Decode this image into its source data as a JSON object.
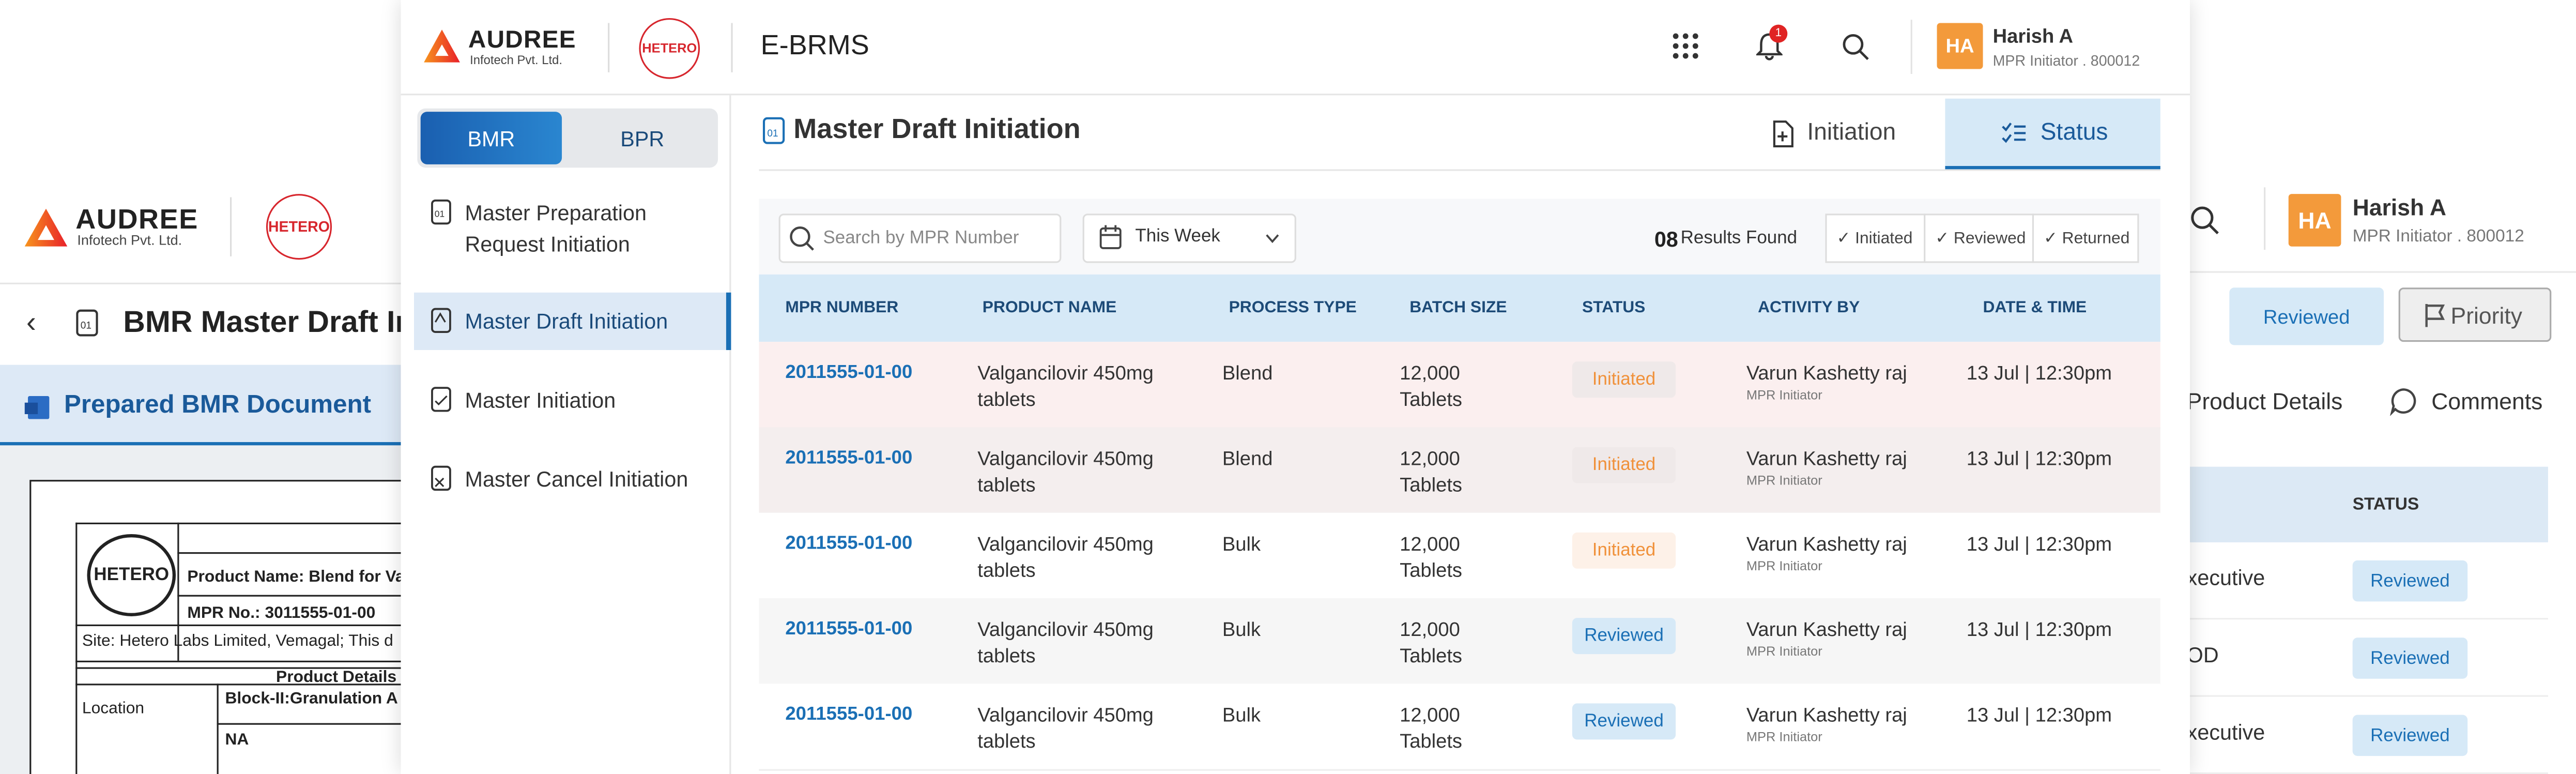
{
  "left_screen": {
    "logo": {
      "name": "AUDREE",
      "tagline": "Infotech Pvt. Ltd."
    },
    "partner": "HETERO",
    "title": "BMR Master Draft Initiation",
    "tab": "Prepared BMR Document",
    "document": {
      "partner": "HETERO",
      "product_name": "Product Name: Blend for Va",
      "mpr_no": "MPR No.: 3011555-01-00",
      "site": "Site: Hetero Labs Limited, Vemagal; This d",
      "section": "Product Details",
      "location_label": "Location",
      "location_value": "Block-II:Granulation A",
      "na": "NA"
    }
  },
  "right_screen": {
    "user": {
      "initials": "HA",
      "name": "Harish A",
      "role": "MPR Initiator . 800012"
    },
    "status_button": "Reviewed",
    "priority": "Priority",
    "tabs": [
      "Product Details",
      "Comments"
    ],
    "table": {
      "header": "STATUS",
      "rows": [
        [
          "xecutive",
          "Reviewed"
        ],
        [
          "OD",
          "Reviewed"
        ],
        [
          "xecutive",
          "Reviewed"
        ]
      ]
    }
  },
  "header": {
    "logo": {
      "name": "AUDREE",
      "tagline": "Infotech Pvt. Ltd."
    },
    "partner": "HETERO",
    "app": "E-BRMS",
    "notifications": "1",
    "user": {
      "initials": "HA",
      "name": "Harish A",
      "role": "MPR Initiator . 800012"
    }
  },
  "sidebar": {
    "tabs": [
      "BMR",
      "BPR"
    ],
    "menu": [
      "Master Preparation Request Initiation",
      "Master Draft Initiation",
      "Master Initiation",
      "Master Cancel Initiation"
    ]
  },
  "content": {
    "title": "Master Draft Initiation",
    "tabs": [
      "Initiation",
      "Status"
    ],
    "search_placeholder": "Search by MPR Number",
    "period": "This Week",
    "results_count": "08",
    "results_label": "Results Found",
    "filters": [
      "Initiated",
      "Reviewed",
      "Returned"
    ],
    "table": {
      "columns": [
        "MPR NUMBER",
        "PRODUCT NAME",
        "PROCESS TYPE",
        "BATCH SIZE",
        "STATUS",
        "ACTIVITY BY",
        "DATE & TIME"
      ],
      "rows": [
        {
          "mpr": "2011555-01-00",
          "product": "Valgancilovir 450mg tablets",
          "process": "Blend",
          "batch": "12,000 Tablets",
          "status": "Initiated",
          "activity_by": "Varun Kashetty raj",
          "activity_role": "MPR Initiator",
          "date": "13 Jul | 12:30pm"
        },
        {
          "mpr": "2011555-01-00",
          "product": "Valgancilovir 450mg tablets",
          "process": "Blend",
          "batch": "12,000 Tablets",
          "status": "Initiated",
          "activity_by": "Varun Kashetty raj",
          "activity_role": "MPR Initiator",
          "date": "13 Jul | 12:30pm"
        },
        {
          "mpr": "2011555-01-00",
          "product": "Valgancilovir 450mg tablets",
          "process": "Bulk",
          "batch": "12,000 Tablets",
          "status": "Initiated",
          "activity_by": "Varun Kashetty raj",
          "activity_role": "MPR Initiator",
          "date": "13 Jul | 12:30pm"
        },
        {
          "mpr": "2011555-01-00",
          "product": "Valgancilovir 450mg tablets",
          "process": "Bulk",
          "batch": "12,000 Tablets",
          "status": "Reviewed",
          "activity_by": "Varun Kashetty raj",
          "activity_role": "MPR Initiator",
          "date": "13 Jul | 12:30pm"
        },
        {
          "mpr": "2011555-01-00",
          "product": "Valgancilovir 450mg tablets",
          "process": "Bulk",
          "batch": "12,000 Tablets",
          "status": "Reviewed",
          "activity_by": "Varun Kashetty raj",
          "activity_role": "MPR Initiator",
          "date": "13 Jul | 12:30pm"
        }
      ]
    }
  }
}
